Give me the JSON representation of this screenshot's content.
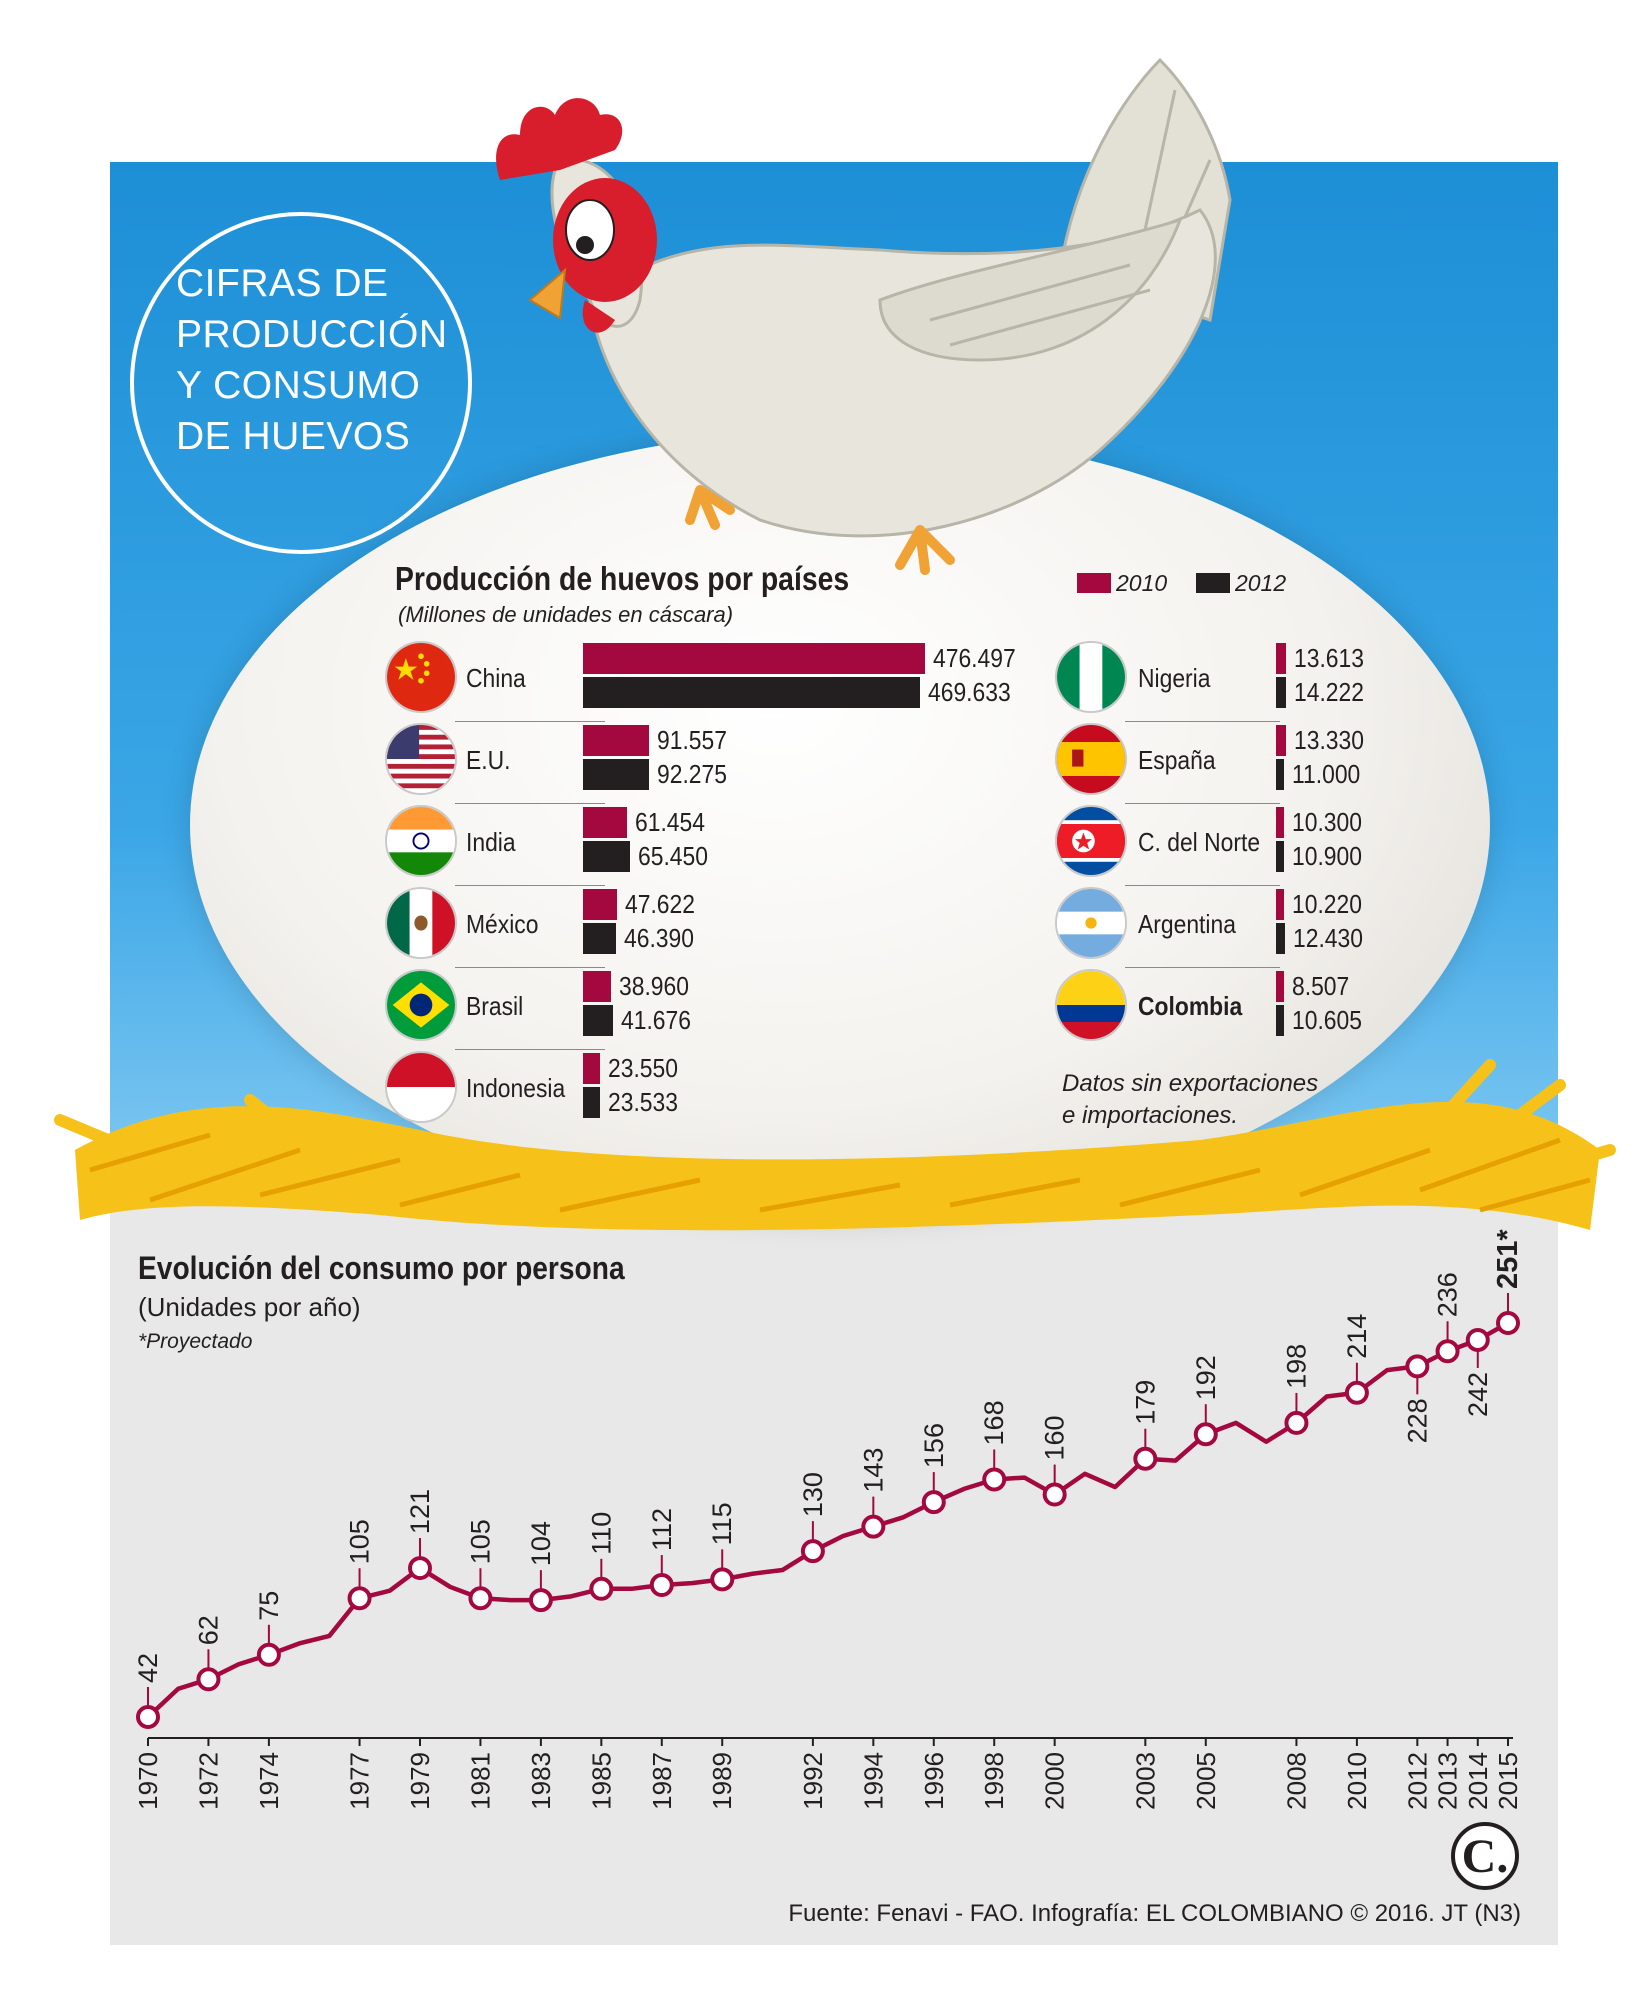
{
  "header": {
    "title_lines": [
      "CIFRAS DE",
      "PRODUCCIÓN",
      "Y CONSUMO",
      "DE HUEVOS"
    ]
  },
  "production": {
    "title": "Producción de huevos por países",
    "subtitle": "(Millones de unidades en cáscara)",
    "legend": [
      {
        "label": "2010",
        "color": "#a3083f"
      },
      {
        "label": "2012",
        "color": "#231f20"
      }
    ],
    "note_lines": [
      "Datos sin exportaciones",
      "e importaciones."
    ]
  },
  "chart_data": [
    {
      "type": "bar",
      "title": "Producción de huevos por países",
      "subtitle": "(Millones de unidades en cáscara)",
      "series": [
        {
          "name": "2010",
          "values": [
            476497,
            91557,
            61454,
            47622,
            38960,
            23550,
            13613,
            13330,
            10300,
            10220,
            8507
          ]
        },
        {
          "name": "2012",
          "values": [
            469633,
            92275,
            65450,
            46390,
            41676,
            23533,
            14222,
            11000,
            10900,
            12430,
            10605
          ]
        }
      ],
      "categories": [
        "China",
        "E.U.",
        "India",
        "México",
        "Brasil",
        "Indonesia",
        "Nigeria",
        "España",
        "C. del Norte",
        "Argentina",
        "Colombia"
      ],
      "flags": [
        "china-flag",
        "usa-flag",
        "india-flag",
        "mexico-flag",
        "brazil-flag",
        "indonesia-flag",
        "nigeria-flag",
        "spain-flag",
        "north-korea-flag",
        "argentina-flag",
        "colombia-flag"
      ],
      "labels_2010": [
        "476.497",
        "91.557",
        "61.454",
        "47.622",
        "38.960",
        "23.550",
        "13.613",
        "13.330",
        "10.300",
        "10.220",
        "8.507"
      ],
      "labels_2012": [
        "469.633",
        "92.275",
        "65.450",
        "46.390",
        "41.676",
        "23.533",
        "14.222",
        "11.000",
        "10.900",
        "12.430",
        "10.605"
      ],
      "highlight": "Colombia",
      "legend_position": "top-right"
    },
    {
      "type": "line",
      "title": "Evolución del consumo por persona",
      "subtitle": "(Unidades por año)",
      "note": "*Proyectado",
      "x": [
        1970,
        1971,
        1972,
        1973,
        1974,
        1975,
        1976,
        1977,
        1978,
        1979,
        1980,
        1981,
        1982,
        1983,
        1984,
        1985,
        1986,
        1987,
        1988,
        1989,
        1990,
        1991,
        1992,
        1993,
        1994,
        1995,
        1996,
        1997,
        1998,
        1999,
        2000,
        2001,
        2002,
        2003,
        2004,
        2005,
        2006,
        2007,
        2008,
        2009,
        2010,
        2011,
        2012,
        2013,
        2014,
        2015
      ],
      "y": [
        42,
        57,
        62,
        70,
        75,
        81,
        85,
        105,
        109,
        121,
        111,
        105,
        104,
        104,
        106,
        110,
        110,
        112,
        113,
        115,
        118,
        120,
        130,
        138,
        143,
        148,
        156,
        163,
        168,
        169,
        160,
        171,
        164,
        179,
        178,
        192,
        198,
        188,
        198,
        212,
        214,
        226,
        228,
        236,
        242,
        251
      ],
      "marked_years": [
        1970,
        1972,
        1974,
        1977,
        1979,
        1981,
        1983,
        1985,
        1987,
        1989,
        1992,
        1994,
        1996,
        1998,
        2000,
        2003,
        2005,
        2008,
        2010,
        2012,
        2013,
        2014,
        2015
      ],
      "marked_labels": [
        "42",
        "62",
        "75",
        "105",
        "121",
        "105",
        "104",
        "110",
        "112",
        "115",
        "130",
        "143",
        "156",
        "168",
        "160",
        "179",
        "192",
        "198",
        "214",
        "228",
        "236",
        "242",
        "251*"
      ],
      "label_below": [
        false,
        false,
        false,
        false,
        false,
        false,
        false,
        false,
        false,
        false,
        false,
        false,
        false,
        false,
        false,
        false,
        false,
        false,
        false,
        true,
        false,
        true,
        false
      ],
      "tick_labels": [
        "1970",
        "1972",
        "1974",
        "1977",
        "1979",
        "1981",
        "1983",
        "1985",
        "1987",
        "1989",
        "1992",
        "1994",
        "1996",
        "1998",
        "2000",
        "2003",
        "2005",
        "2008",
        "2010",
        "2012",
        "2013",
        "2014",
        "2015"
      ],
      "color": "#a3083f",
      "xlim": [
        1970,
        2015
      ],
      "ylim": [
        42,
        251
      ]
    }
  ],
  "footer": {
    "source": "Fuente: Fenavi - FAO. Infografía: EL COLOMBIANO © 2016. JT (N3)",
    "logo_letter": "C."
  }
}
